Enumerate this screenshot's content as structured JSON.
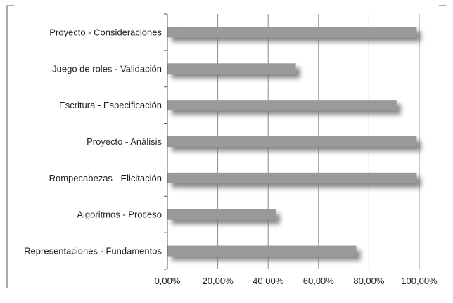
{
  "chart_data": {
    "type": "bar",
    "orientation": "horizontal",
    "categories": [
      "Proyecto - Consideraciones",
      "Juego de roles - Validación",
      "Escritura - Especificación",
      "Proyecto - Análisis",
      "Rompecabezas - Elicitación",
      "Algoritmos - Proceso",
      "Representaciones - Fundamentos"
    ],
    "values": [
      99,
      51,
      91,
      99,
      99,
      43,
      75
    ],
    "xlim": [
      0,
      100
    ],
    "x_ticks": [
      0,
      20,
      40,
      60,
      80,
      100
    ],
    "x_tick_labels": [
      "0,00%",
      "20,00%",
      "40,00%",
      "60,00%",
      "80,00%",
      "100,00%"
    ],
    "title": "",
    "xlabel": "",
    "ylabel": "",
    "grid": "vertical",
    "bar_color": "#9a9a9a",
    "shadow_color": "#7a7a7a"
  }
}
